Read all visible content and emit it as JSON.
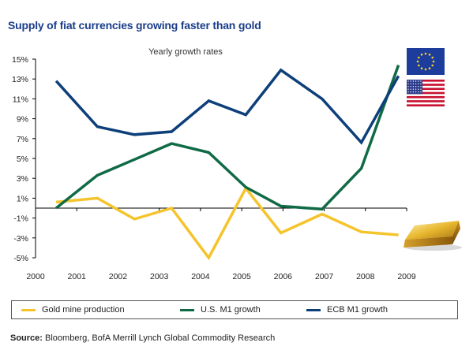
{
  "title": "Supply of fiat currencies growing faster than gold",
  "subtitle": "Yearly growth rates",
  "source_label": "Source:",
  "source_text": "Bloomberg,  BofA Merrill Lynch Global Commodity Research",
  "colors": {
    "title": "#1a3d8a",
    "gold": "#f5c42c",
    "us": "#106a46",
    "ecb": "#0d3f7a",
    "axis": "#000000"
  },
  "chart_data": {
    "type": "line",
    "x_ticks": [
      "2000",
      "2001",
      "2002",
      "2003",
      "2004",
      "2005",
      "2006",
      "2007",
      "2008",
      "2009"
    ],
    "y_ticks": [
      "15%",
      "13%",
      "11%",
      "9%",
      "7%",
      "5%",
      "3%",
      "1%",
      "-1%",
      "-3%",
      "-5%"
    ],
    "ylim": [
      -5,
      15
    ],
    "xlim": [
      2000,
      2009
    ],
    "series": [
      {
        "name": "Gold mine production",
        "color": "#f5c42c",
        "points": [
          [
            2000.5,
            0.6
          ],
          [
            2001.5,
            1.0
          ],
          [
            2002.4,
            -1.1
          ],
          [
            2003.3,
            0.0
          ],
          [
            2004.2,
            -5.0
          ],
          [
            2005.1,
            2.0
          ],
          [
            2005.95,
            -2.5
          ],
          [
            2006.95,
            -0.6
          ],
          [
            2007.9,
            -2.4
          ],
          [
            2008.8,
            -2.7
          ]
        ]
      },
      {
        "name": "U.S. M1 growth",
        "color": "#106a46",
        "points": [
          [
            2000.5,
            0.0
          ],
          [
            2001.5,
            3.3
          ],
          [
            2002.4,
            4.9
          ],
          [
            2003.3,
            6.5
          ],
          [
            2004.2,
            5.6
          ],
          [
            2005.1,
            2.1
          ],
          [
            2005.95,
            0.2
          ],
          [
            2006.95,
            -0.1
          ],
          [
            2007.9,
            4.0
          ],
          [
            2008.8,
            14.4
          ]
        ]
      },
      {
        "name": "ECB M1 growth",
        "color": "#0d3f7a",
        "points": [
          [
            2000.5,
            12.8
          ],
          [
            2001.5,
            8.2
          ],
          [
            2002.4,
            7.4
          ],
          [
            2003.3,
            7.7
          ],
          [
            2004.2,
            10.8
          ],
          [
            2005.1,
            9.4
          ],
          [
            2005.95,
            13.9
          ],
          [
            2006.95,
            11.0
          ],
          [
            2007.9,
            6.6
          ],
          [
            2008.8,
            13.3
          ]
        ]
      }
    ]
  }
}
